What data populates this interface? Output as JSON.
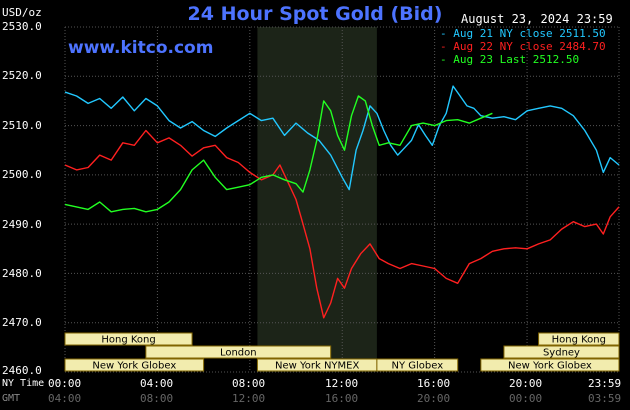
{
  "header": {
    "title": "24 Hour Spot Gold (Bid)",
    "date": "August 23, 2024 23:59",
    "unit": "USD/oz",
    "site": "www.kitco.com"
  },
  "colors": {
    "background": "#000000",
    "plot_background": "#000000",
    "nymex_band": "#1c2418",
    "grid": "#555555",
    "title": "#4d73ff",
    "session_box": "#f2ecae",
    "session_text": "#000000",
    "session_border": "#806400"
  },
  "axis": {
    "y_labels": [
      "2530.0",
      "2520.0",
      "2510.0",
      "2500.0",
      "2490.0",
      "2480.0",
      "2470.0",
      "2460.0"
    ],
    "x_labels": [
      "00:00",
      "04:00",
      "08:00",
      "12:00",
      "16:00",
      "20:00",
      "23:59"
    ],
    "x_labels_gmt": [
      "04:00",
      "08:00",
      "12:00",
      "16:00",
      "20:00",
      "00:00",
      "03:59"
    ],
    "ny_time_label": "NY Time",
    "gmt_label": "GMT"
  },
  "sessions": [
    {
      "label": "Hong Kong",
      "start": 0.0,
      "end": 5.5,
      "row": 0
    },
    {
      "label": "London",
      "start": 3.5,
      "end": 11.5,
      "row": 1
    },
    {
      "label": "New York Globex",
      "start": 0.0,
      "end": 6.0,
      "row": 2
    },
    {
      "label": "New York NYMEX",
      "start": 8.33,
      "end": 13.5,
      "row": 2
    },
    {
      "label": "NY Globex",
      "start": 13.5,
      "end": 17.0,
      "row": 2
    },
    {
      "label": "Hong Kong",
      "start": 20.5,
      "end": 23.98,
      "row": 0
    },
    {
      "label": "Sydney",
      "start": 19.0,
      "end": 23.98,
      "row": 1
    },
    {
      "label": "New York Globex",
      "start": 18.0,
      "end": 23.98,
      "row": 2
    }
  ],
  "chart_data": {
    "type": "line",
    "title": "24 Hour Spot Gold (Bid)",
    "ylabel": "USD/oz",
    "ylim": [
      2460,
      2530
    ],
    "xlim_hours": [
      0,
      23.98
    ],
    "nymex_shade_hours": [
      8.33,
      13.5
    ],
    "grid": true,
    "legend_position": "top-right",
    "series": [
      {
        "name": "Aug 21 NY close 2511.50",
        "color": "#22c8ff",
        "points": [
          [
            0,
            2516.8
          ],
          [
            0.5,
            2516
          ],
          [
            1,
            2514.5
          ],
          [
            1.5,
            2515.5
          ],
          [
            2,
            2513.5
          ],
          [
            2.5,
            2515.8
          ],
          [
            3,
            2513
          ],
          [
            3.5,
            2515.5
          ],
          [
            4,
            2514
          ],
          [
            4.5,
            2511
          ],
          [
            5,
            2509.5
          ],
          [
            5.5,
            2510.8
          ],
          [
            6,
            2509
          ],
          [
            6.5,
            2507.8
          ],
          [
            7,
            2509.5
          ],
          [
            7.5,
            2511
          ],
          [
            8,
            2512.5
          ],
          [
            8.5,
            2511
          ],
          [
            9,
            2511.5
          ],
          [
            9.5,
            2508
          ],
          [
            10,
            2510.5
          ],
          [
            10.5,
            2508.5
          ],
          [
            11,
            2507
          ],
          [
            11.5,
            2504
          ],
          [
            12,
            2499.5
          ],
          [
            12.3,
            2497
          ],
          [
            12.6,
            2505
          ],
          [
            12.9,
            2509
          ],
          [
            13.2,
            2514
          ],
          [
            13.5,
            2512.5
          ],
          [
            13.8,
            2509
          ],
          [
            14.1,
            2506
          ],
          [
            14.4,
            2504
          ],
          [
            14.7,
            2505.5
          ],
          [
            15,
            2507
          ],
          [
            15.3,
            2510.2
          ],
          [
            15.6,
            2508
          ],
          [
            15.9,
            2506
          ],
          [
            16.2,
            2510
          ],
          [
            16.5,
            2512.5
          ],
          [
            16.8,
            2518
          ],
          [
            17.1,
            2516
          ],
          [
            17.4,
            2514
          ],
          [
            17.7,
            2513.5
          ],
          [
            18,
            2512
          ],
          [
            18.5,
            2511.5
          ],
          [
            19,
            2511.8
          ],
          [
            19.5,
            2511.2
          ],
          [
            20,
            2513
          ],
          [
            20.5,
            2513.5
          ],
          [
            21,
            2514
          ],
          [
            21.5,
            2513.5
          ],
          [
            22,
            2512
          ],
          [
            22.5,
            2509
          ],
          [
            23,
            2505
          ],
          [
            23.3,
            2500.5
          ],
          [
            23.6,
            2503.5
          ],
          [
            23.98,
            2502
          ]
        ]
      },
      {
        "name": "Aug 22 NY close 2484.70",
        "color": "#ff2020",
        "points": [
          [
            0,
            2502
          ],
          [
            0.5,
            2501
          ],
          [
            1,
            2501.5
          ],
          [
            1.5,
            2504
          ],
          [
            2,
            2503
          ],
          [
            2.5,
            2506.5
          ],
          [
            3,
            2506
          ],
          [
            3.5,
            2509
          ],
          [
            4,
            2506.5
          ],
          [
            4.5,
            2507.5
          ],
          [
            5,
            2506
          ],
          [
            5.5,
            2503.8
          ],
          [
            6,
            2505.5
          ],
          [
            6.5,
            2506
          ],
          [
            7,
            2503.5
          ],
          [
            7.5,
            2502.5
          ],
          [
            8,
            2500.5
          ],
          [
            8.5,
            2499
          ],
          [
            9,
            2500
          ],
          [
            9.3,
            2502
          ],
          [
            9.7,
            2498
          ],
          [
            10,
            2495
          ],
          [
            10.3,
            2490
          ],
          [
            10.6,
            2485
          ],
          [
            10.9,
            2477
          ],
          [
            11.2,
            2471
          ],
          [
            11.5,
            2474
          ],
          [
            11.8,
            2479
          ],
          [
            12.1,
            2477
          ],
          [
            12.4,
            2481
          ],
          [
            12.8,
            2484
          ],
          [
            13.2,
            2486
          ],
          [
            13.6,
            2483
          ],
          [
            14,
            2482
          ],
          [
            14.5,
            2481
          ],
          [
            15,
            2482
          ],
          [
            15.5,
            2481.5
          ],
          [
            16,
            2481
          ],
          [
            16.5,
            2479
          ],
          [
            17,
            2478
          ],
          [
            17.5,
            2482
          ],
          [
            18,
            2483
          ],
          [
            18.5,
            2484.5
          ],
          [
            19,
            2485
          ],
          [
            19.5,
            2485.2
          ],
          [
            20,
            2485
          ],
          [
            20.5,
            2486
          ],
          [
            21,
            2486.8
          ],
          [
            21.5,
            2489
          ],
          [
            22,
            2490.5
          ],
          [
            22.5,
            2489.5
          ],
          [
            23,
            2490
          ],
          [
            23.3,
            2488
          ],
          [
            23.6,
            2491.5
          ],
          [
            23.98,
            2493.5
          ]
        ]
      },
      {
        "name": "Aug 23 Last 2512.50",
        "color": "#22ff22",
        "points": [
          [
            0,
            2494
          ],
          [
            0.5,
            2493.5
          ],
          [
            1,
            2493
          ],
          [
            1.5,
            2494.5
          ],
          [
            2,
            2492.5
          ],
          [
            2.5,
            2493
          ],
          [
            3,
            2493.2
          ],
          [
            3.5,
            2492.5
          ],
          [
            4,
            2493
          ],
          [
            4.5,
            2494.5
          ],
          [
            5,
            2497
          ],
          [
            5.5,
            2501
          ],
          [
            6,
            2503
          ],
          [
            6.5,
            2499.5
          ],
          [
            7,
            2497
          ],
          [
            7.5,
            2497.5
          ],
          [
            8,
            2498
          ],
          [
            8.5,
            2499.5
          ],
          [
            9,
            2500
          ],
          [
            9.5,
            2499
          ],
          [
            10,
            2498.2
          ],
          [
            10.3,
            2496.5
          ],
          [
            10.6,
            2501
          ],
          [
            10.9,
            2507
          ],
          [
            11.2,
            2515
          ],
          [
            11.5,
            2513
          ],
          [
            11.8,
            2508
          ],
          [
            12.1,
            2505
          ],
          [
            12.4,
            2512
          ],
          [
            12.7,
            2516
          ],
          [
            13,
            2515
          ],
          [
            13.3,
            2510
          ],
          [
            13.6,
            2506
          ],
          [
            14,
            2506.5
          ],
          [
            14.5,
            2506
          ],
          [
            15,
            2510
          ],
          [
            15.5,
            2510.5
          ],
          [
            16,
            2510
          ],
          [
            16.5,
            2511
          ],
          [
            17,
            2511.2
          ],
          [
            17.5,
            2510.5
          ],
          [
            18,
            2511.5
          ],
          [
            18.5,
            2512.5
          ]
        ]
      }
    ]
  }
}
